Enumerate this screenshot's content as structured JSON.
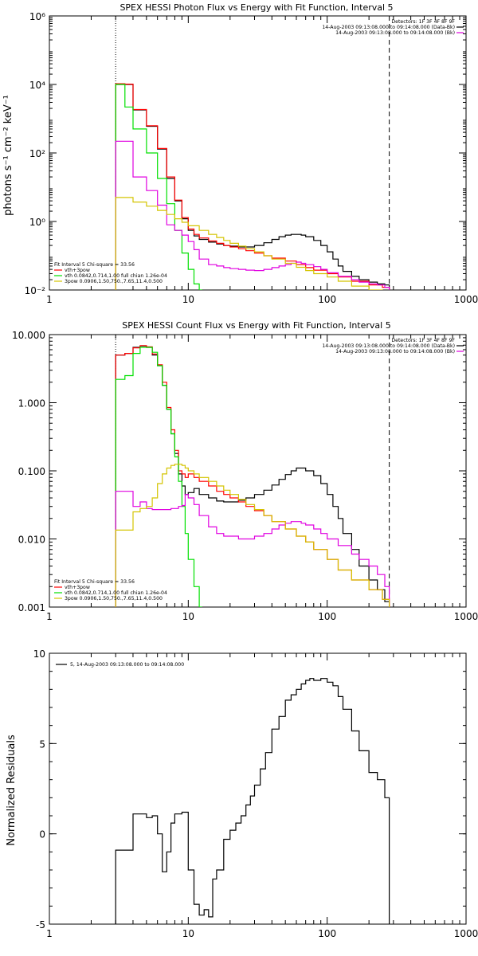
{
  "colors": {
    "black": "#000000",
    "red": "#ff0000",
    "green": "#00e000",
    "magenta": "#e000e0",
    "yellow": "#d4c400"
  },
  "chart_data": [
    {
      "id": "photon",
      "type": "line",
      "title": "SPEX HESSI Photon Flux vs Energy with Fit Function, Interval 5",
      "ylabel": "photons s⁻¹ cm⁻² keV⁻¹",
      "xlabel": "",
      "xscale": "log",
      "yscale": "log",
      "xlim": [
        1,
        1000
      ],
      "ylim": [
        0.01,
        1000000
      ],
      "xticks": [
        {
          "v": 1,
          "label": "1"
        },
        {
          "v": 10,
          "label": "10"
        },
        {
          "v": 100,
          "label": "100"
        },
        {
          "v": 1000,
          "label": "1000"
        }
      ],
      "yticks": [
        {
          "v": 0.01,
          "label": "10⁻²"
        },
        {
          "v": 1,
          "label": "10⁰"
        },
        {
          "v": 100,
          "label": "10²"
        },
        {
          "v": 10000,
          "label": "10⁴"
        },
        {
          "v": 1000000,
          "label": "10⁶"
        }
      ],
      "vlines": [
        {
          "x": 3,
          "style": "dotted"
        },
        {
          "x": 280,
          "style": "dashed"
        }
      ],
      "header_right": [
        "Detectors: 1F 3F 4F 8F 9F",
        "14-Aug-2003 09:13:08.000 to 09:14:08.000 (Data-Bk)",
        "14-Aug-2003 09:13:08.000 to 09:14:08.000 (Bk)"
      ],
      "header_samples": [
        "black",
        "magenta"
      ],
      "legend_title": "Fit Interval 5   Chi-square = 33.56",
      "legend": [
        {
          "label": "vth+3pow",
          "color": "red"
        },
        {
          "label": "vth 0.0842,0.714,1.00  full chian 1.26e-04",
          "color": "green"
        },
        {
          "label": "3pow 0.0906,1.50,750.,7.65,11.4,0.500",
          "color": "yellow"
        }
      ],
      "series": [
        {
          "color": "black",
          "edges": [
            3,
            3.5,
            4,
            5,
            6,
            7,
            8,
            9,
            10,
            11,
            12,
            14,
            16,
            18,
            20,
            23,
            26,
            30,
            35,
            40,
            45,
            50,
            55,
            60,
            65,
            70,
            80,
            90,
            100,
            110,
            120,
            130,
            150,
            170,
            200,
            230,
            260,
            280
          ],
          "values": [
            10000,
            10000,
            1800,
            600,
            130,
            18,
            4,
            1.2,
            0.55,
            0.38,
            0.3,
            0.25,
            0.22,
            0.2,
            0.19,
            0.18,
            0.18,
            0.2,
            0.24,
            0.3,
            0.36,
            0.4,
            0.42,
            0.42,
            0.4,
            0.36,
            0.28,
            0.2,
            0.13,
            0.08,
            0.05,
            0.035,
            0.025,
            0.02,
            0.017,
            0.015,
            0.014
          ]
        },
        {
          "color": "red",
          "edges": [
            3,
            3.5,
            4,
            5,
            6,
            7,
            8,
            9,
            10,
            11,
            12,
            14,
            16,
            18,
            20,
            23,
            26,
            30,
            35,
            40,
            50,
            60,
            70,
            80,
            100,
            120,
            150,
            200,
            250,
            280
          ],
          "values": [
            10500,
            10200,
            1850,
            620,
            135,
            20,
            4.2,
            1.3,
            0.6,
            0.42,
            0.33,
            0.27,
            0.23,
            0.2,
            0.18,
            0.16,
            0.14,
            0.12,
            0.1,
            0.085,
            0.07,
            0.055,
            0.045,
            0.038,
            0.03,
            0.024,
            0.018,
            0.014,
            0.012
          ]
        },
        {
          "color": "green",
          "edges": [
            3,
            3.5,
            4,
            5,
            6,
            7,
            8,
            9,
            10,
            11,
            12,
            12.5
          ],
          "values": [
            10000,
            2200,
            500,
            100,
            18,
            3.3,
            0.55,
            0.12,
            0.04,
            0.015,
            0.01
          ]
        },
        {
          "color": "magenta",
          "edges": [
            3,
            3.5,
            4,
            5,
            6,
            7,
            8,
            9,
            10,
            11,
            12,
            14,
            16,
            18,
            20,
            23,
            26,
            30,
            35,
            40,
            45,
            50,
            55,
            60,
            65,
            70,
            80,
            90,
            100,
            120,
            150,
            170,
            200,
            230,
            260,
            280
          ],
          "values": [
            220,
            220,
            20,
            8,
            3,
            0.8,
            0.55,
            0.4,
            0.26,
            0.15,
            0.08,
            0.055,
            0.05,
            0.045,
            0.042,
            0.04,
            0.038,
            0.037,
            0.04,
            0.045,
            0.05,
            0.055,
            0.06,
            0.065,
            0.06,
            0.055,
            0.048,
            0.04,
            0.032,
            0.025,
            0.02,
            0.017,
            0.015,
            0.014,
            0.012
          ]
        },
        {
          "color": "yellow",
          "edges": [
            3,
            3.5,
            4,
            5,
            6,
            7,
            8,
            9,
            10,
            12,
            14,
            16,
            18,
            20,
            23,
            26,
            30,
            35,
            40,
            50,
            60,
            70,
            80,
            100,
            120,
            150,
            200,
            250,
            280
          ],
          "values": [
            5,
            5,
            3.7,
            2.8,
            2.1,
            1.6,
            1.2,
            0.95,
            0.75,
            0.55,
            0.42,
            0.34,
            0.28,
            0.23,
            0.19,
            0.16,
            0.13,
            0.1,
            0.08,
            0.06,
            0.046,
            0.037,
            0.03,
            0.024,
            0.018,
            0.013,
            0.01,
            0.009
          ]
        }
      ]
    },
    {
      "id": "count",
      "type": "line",
      "title": "SPEX HESSI Count Flux vs Energy with Fit Function, Interval 5",
      "ylabel": "",
      "xlabel": "",
      "xscale": "log",
      "yscale": "log",
      "xlim": [
        1,
        1000
      ],
      "ylim": [
        0.001,
        10
      ],
      "xticks": [
        {
          "v": 1,
          "label": "1"
        },
        {
          "v": 10,
          "label": "10"
        },
        {
          "v": 100,
          "label": "100"
        },
        {
          "v": 1000,
          "label": "1000"
        }
      ],
      "yticks": [
        {
          "v": 0.001,
          "label": "0.001"
        },
        {
          "v": 0.01,
          "label": "0.010"
        },
        {
          "v": 0.1,
          "label": "0.100"
        },
        {
          "v": 1,
          "label": "1.000"
        },
        {
          "v": 10,
          "label": "10.000"
        }
      ],
      "vlines": [
        {
          "x": 3,
          "style": "dotted"
        },
        {
          "x": 280,
          "style": "dashed"
        }
      ],
      "header_right": [
        "Detectors: 1F 3F 4F 8F 9F",
        "14-Aug-2003 09:13:08.000 to 09:14:08.000 (Data-Bk)",
        "14-Aug-2003 09:13:08.000 to 09:14:08.000 (Bk)"
      ],
      "header_samples": [
        "black",
        "magenta"
      ],
      "legend_title": "Fit Interval 5   Chi-square = 33.56",
      "legend": [
        {
          "label": "vth+3pow",
          "color": "red"
        },
        {
          "label": "vth 0.0842,0.714,1.00  full chian 1.26e-04",
          "color": "green"
        },
        {
          "label": "3pow 0.0906,1.50,750.,7.65,11.4,0.500",
          "color": "yellow"
        }
      ],
      "series": [
        {
          "color": "black",
          "edges": [
            3,
            3.5,
            4,
            4.5,
            5,
            5.5,
            6,
            6.5,
            7,
            7.5,
            8,
            8.5,
            9,
            9.5,
            10,
            11,
            12,
            14,
            16,
            18,
            20,
            23,
            26,
            30,
            35,
            40,
            45,
            50,
            55,
            60,
            65,
            70,
            80,
            90,
            100,
            110,
            120,
            130,
            150,
            170,
            200,
            230,
            260,
            280
          ],
          "values": [
            5,
            5.3,
            6.5,
            6.8,
            6.5,
            5,
            3.5,
            1.8,
            0.8,
            0.35,
            0.18,
            0.09,
            0.06,
            0.045,
            0.048,
            0.055,
            0.045,
            0.04,
            0.036,
            0.035,
            0.035,
            0.037,
            0.04,
            0.045,
            0.052,
            0.062,
            0.075,
            0.088,
            0.1,
            0.11,
            0.11,
            0.1,
            0.085,
            0.065,
            0.045,
            0.03,
            0.02,
            0.012,
            0.007,
            0.004,
            0.0025,
            0.0018,
            0.0012
          ]
        },
        {
          "color": "red",
          "edges": [
            3,
            3.5,
            4,
            4.5,
            5,
            5.5,
            6,
            6.5,
            7,
            7.5,
            8,
            8.5,
            9,
            9.5,
            10,
            11,
            12,
            14,
            16,
            18,
            20,
            23,
            26,
            30,
            35,
            40,
            50,
            60,
            70,
            80,
            100,
            120,
            150,
            200,
            250,
            280
          ],
          "values": [
            5,
            5.3,
            6.4,
            6.9,
            6.6,
            5.2,
            3.6,
            2,
            0.85,
            0.4,
            0.2,
            0.1,
            0.09,
            0.08,
            0.09,
            0.08,
            0.07,
            0.06,
            0.05,
            0.045,
            0.04,
            0.035,
            0.03,
            0.026,
            0.022,
            0.018,
            0.014,
            0.011,
            0.009,
            0.007,
            0.005,
            0.0035,
            0.0025,
            0.0018,
            0.0013
          ]
        },
        {
          "color": "green",
          "edges": [
            3,
            3.5,
            4,
            4.5,
            5,
            5.5,
            6,
            6.5,
            7,
            7.5,
            8,
            8.5,
            9,
            9.5,
            10,
            11,
            12,
            12.5
          ],
          "values": [
            2.2,
            2.5,
            5.3,
            6.5,
            6.5,
            5.5,
            3.5,
            1.8,
            0.8,
            0.35,
            0.16,
            0.07,
            0.03,
            0.012,
            0.005,
            0.002,
            0.001
          ]
        },
        {
          "color": "magenta",
          "edges": [
            3,
            3.5,
            4,
            4.5,
            5,
            5.5,
            6,
            6.5,
            7,
            7.5,
            8,
            8.5,
            9,
            9.5,
            10,
            11,
            12,
            14,
            16,
            18,
            20,
            23,
            26,
            30,
            35,
            40,
            45,
            50,
            55,
            60,
            65,
            70,
            80,
            90,
            100,
            120,
            150,
            170,
            200,
            230,
            260,
            280
          ],
          "values": [
            0.05,
            0.05,
            0.03,
            0.035,
            0.028,
            0.027,
            0.027,
            0.027,
            0.027,
            0.028,
            0.028,
            0.03,
            0.031,
            0.045,
            0.04,
            0.032,
            0.022,
            0.015,
            0.012,
            0.011,
            0.011,
            0.01,
            0.01,
            0.011,
            0.012,
            0.014,
            0.016,
            0.017,
            0.018,
            0.018,
            0.017,
            0.016,
            0.014,
            0.012,
            0.01,
            0.008,
            0.006,
            0.005,
            0.004,
            0.003,
            0.002
          ]
        },
        {
          "color": "yellow",
          "edges": [
            3,
            3.5,
            4,
            4.5,
            5,
            5.5,
            6,
            6.5,
            7,
            7.5,
            8,
            8.5,
            9,
            9.5,
            10,
            11,
            12,
            14,
            16,
            18,
            20,
            23,
            26,
            30,
            35,
            40,
            50,
            60,
            70,
            80,
            100,
            120,
            150,
            200,
            250,
            280
          ],
          "values": [
            0.0135,
            0.0135,
            0.025,
            0.028,
            0.03,
            0.04,
            0.065,
            0.09,
            0.11,
            0.12,
            0.125,
            0.125,
            0.12,
            0.11,
            0.1,
            0.09,
            0.08,
            0.07,
            0.06,
            0.052,
            0.045,
            0.038,
            0.032,
            0.027,
            0.022,
            0.018,
            0.014,
            0.011,
            0.009,
            0.007,
            0.005,
            0.0035,
            0.0025,
            0.0018,
            0.0013
          ]
        }
      ]
    },
    {
      "id": "resid",
      "type": "line",
      "title": "",
      "ylabel": "Normalized Residuals",
      "xlabel": "",
      "xscale": "log",
      "yscale": "linear",
      "xlim": [
        1,
        1000
      ],
      "ylim": [
        -5,
        10
      ],
      "xticks": [
        {
          "v": 1,
          "label": "1"
        },
        {
          "v": 10,
          "label": "10"
        },
        {
          "v": 100,
          "label": "100"
        },
        {
          "v": 1000,
          "label": "1000"
        }
      ],
      "yticks": [
        {
          "v": -5,
          "label": "-5"
        },
        {
          "v": 0,
          "label": "0"
        },
        {
          "v": 5,
          "label": "5"
        },
        {
          "v": 10,
          "label": "10"
        }
      ],
      "vlines": [],
      "legend_left": "5, 14-Aug-2003 09:13:08.000 to 09:14:08.000",
      "series": [
        {
          "color": "black",
          "edges": [
            3,
            4,
            4.5,
            5,
            5.5,
            6,
            6.5,
            7,
            7.5,
            8,
            9,
            10,
            11,
            12,
            13,
            14,
            15,
            16,
            18,
            20,
            22,
            24,
            26,
            28,
            30,
            33,
            36,
            40,
            45,
            50,
            55,
            60,
            65,
            70,
            75,
            80,
            90,
            100,
            110,
            120,
            130,
            150,
            170,
            200,
            230,
            260,
            280
          ],
          "values": [
            -0.9,
            1.1,
            1.1,
            0.9,
            1.0,
            0.0,
            -2.1,
            -1.0,
            0.6,
            1.1,
            1.2,
            -2.0,
            -3.9,
            -4.5,
            -4.2,
            -4.6,
            -2.5,
            -2.0,
            -0.3,
            0.2,
            0.6,
            1.0,
            1.6,
            2.1,
            2.7,
            3.6,
            4.5,
            5.8,
            6.5,
            7.4,
            7.7,
            8.0,
            8.3,
            8.5,
            8.6,
            8.5,
            8.6,
            8.4,
            8.2,
            7.6,
            6.9,
            5.7,
            4.6,
            3.4,
            3.0,
            2.0
          ]
        }
      ]
    }
  ]
}
